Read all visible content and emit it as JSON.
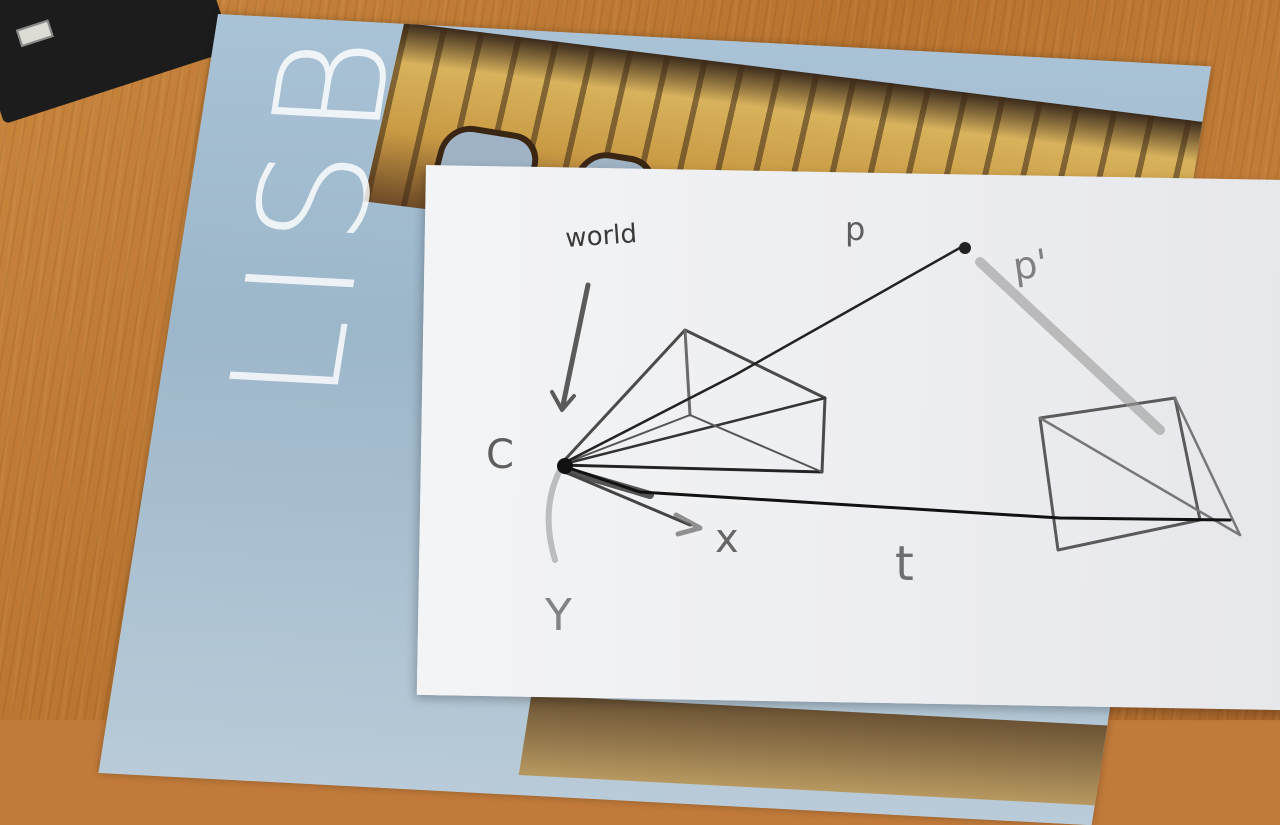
{
  "magazine": {
    "cover_title": "LISBOA"
  },
  "sketch": {
    "world_label": "world",
    "c_label": "C",
    "x_label": "x",
    "y_label": "Y",
    "t_label": "t",
    "p_label": "p",
    "p_prime_label": "p'"
  }
}
